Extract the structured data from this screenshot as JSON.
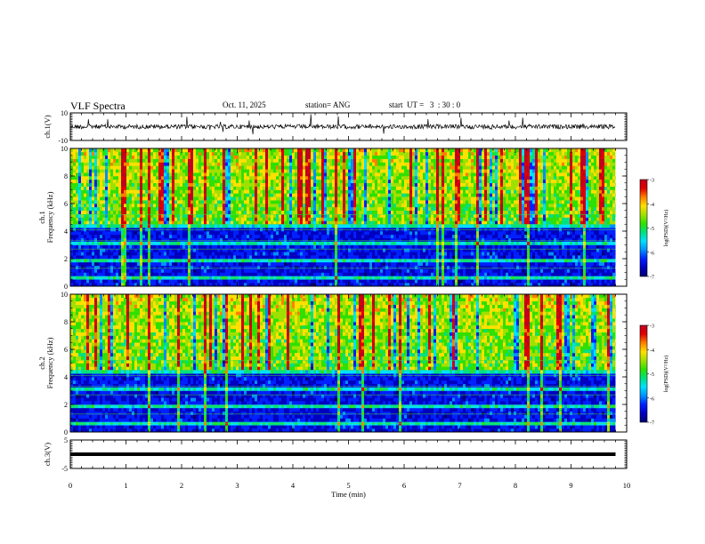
{
  "header": {
    "title": "VLF Spectra",
    "date": "Oct. 11, 2025",
    "station": "station= ANG",
    "start_ut": "start  UT =   3  : 30 : 0"
  },
  "chart_data": [
    {
      "type": "line",
      "name": "ch1-waveform",
      "ylabel": "ch.1(V)",
      "ylim": [
        -10,
        10
      ],
      "yticks": [
        "10",
        "-10"
      ],
      "xlim": [
        0,
        10
      ],
      "trace_level": 0,
      "trace_extent_min": 9.8,
      "color": "#000000"
    },
    {
      "type": "heatmap",
      "name": "ch1-spectrogram",
      "ylabel": "ch.1\nFrequency (kHz)",
      "ylim": [
        0,
        10
      ],
      "yticks": [
        "0",
        "2",
        "4",
        "6",
        "8",
        "10"
      ],
      "xlim": [
        0,
        10
      ],
      "data_extent_min": 9.8,
      "colorbar": {
        "label": "log(PSD)(V²/Hz)",
        "range": [
          -7,
          -3
        ],
        "ticks": [
          "-3",
          "-4",
          "-5",
          "-6",
          "-7"
        ]
      }
    },
    {
      "type": "heatmap",
      "name": "ch2-spectrogram",
      "ylabel": "ch.2\nFrequency (kHz)",
      "ylim": [
        0,
        10
      ],
      "yticks": [
        "0",
        "2",
        "4",
        "6",
        "8",
        "10"
      ],
      "xlim": [
        0,
        10
      ],
      "data_extent_min": 9.8,
      "colorbar": {
        "label": "log(PSD)(V²/Hz)",
        "range": [
          -7,
          -3
        ],
        "ticks": [
          "-3",
          "-4",
          "-5",
          "-6",
          "-7"
        ]
      }
    },
    {
      "type": "line",
      "name": "ch3-waveform",
      "ylabel": "ch.3(V)",
      "ylim": [
        -5,
        5
      ],
      "yticks": [
        "5",
        "-5"
      ],
      "xlim": [
        0,
        10
      ],
      "trace_level": 0,
      "trace_extent_min": 9.8,
      "color": "#000000"
    }
  ],
  "xaxis": {
    "label": "Time (min)",
    "ticks": [
      "0",
      "1",
      "2",
      "3",
      "4",
      "5",
      "6",
      "7",
      "8",
      "9",
      "10"
    ]
  },
  "colormap": [
    "#000070",
    "#0000c0",
    "#0020ff",
    "#0090ff",
    "#00e0ff",
    "#00e080",
    "#30e000",
    "#a0e000",
    "#ffe000",
    "#ff8000",
    "#e00000",
    "#c00020"
  ]
}
